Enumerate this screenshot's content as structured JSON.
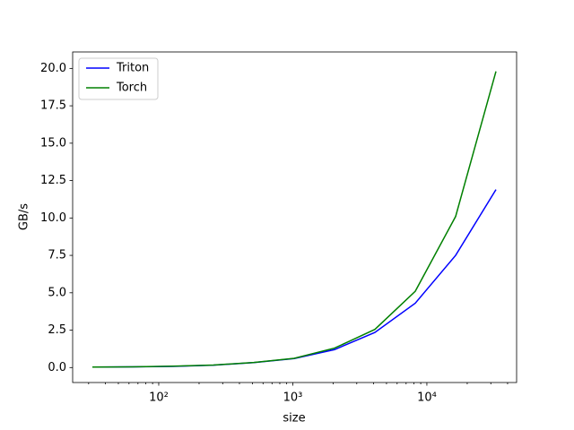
{
  "chart_data": {
    "type": "line",
    "x_label": "size",
    "y_label": "GB/s",
    "x": [
      32,
      64,
      128,
      256,
      512,
      1024,
      2048,
      4096,
      8192,
      16384,
      32768
    ],
    "series": [
      {
        "name": "Triton",
        "color": "#0000ff",
        "values": [
          0.03,
          0.05,
          0.08,
          0.16,
          0.33,
          0.6,
          1.2,
          2.35,
          4.3,
          7.5,
          11.9
        ]
      },
      {
        "name": "Torch",
        "color": "#008000",
        "values": [
          0.03,
          0.05,
          0.09,
          0.17,
          0.34,
          0.62,
          1.3,
          2.55,
          5.1,
          10.1,
          19.8
        ]
      }
    ],
    "xlog": true,
    "xlim": [
      22.8,
      46700
    ],
    "xticks": [
      {
        "value": 100,
        "label": "10²"
      },
      {
        "value": 1000,
        "label": "10³"
      },
      {
        "value": 10000,
        "label": "10⁴"
      }
    ],
    "xminorticks": [
      30,
      40,
      50,
      60,
      70,
      80,
      90,
      200,
      300,
      400,
      500,
      600,
      700,
      800,
      900,
      2000,
      3000,
      4000,
      5000,
      6000,
      7000,
      8000,
      9000,
      20000,
      30000,
      40000
    ],
    "ylim": [
      -1.0,
      21.1
    ],
    "yticks": [
      {
        "value": 0,
        "label": "0.0"
      },
      2.5,
      {
        "value": 5,
        "label": "5.0"
      },
      7.5,
      {
        "value": 10,
        "label": "10.0"
      },
      12.5,
      {
        "value": 15,
        "label": "15.0"
      },
      17.5,
      {
        "value": 20,
        "label": "20.0"
      }
    ],
    "legend": "upper left",
    "grid": false
  }
}
